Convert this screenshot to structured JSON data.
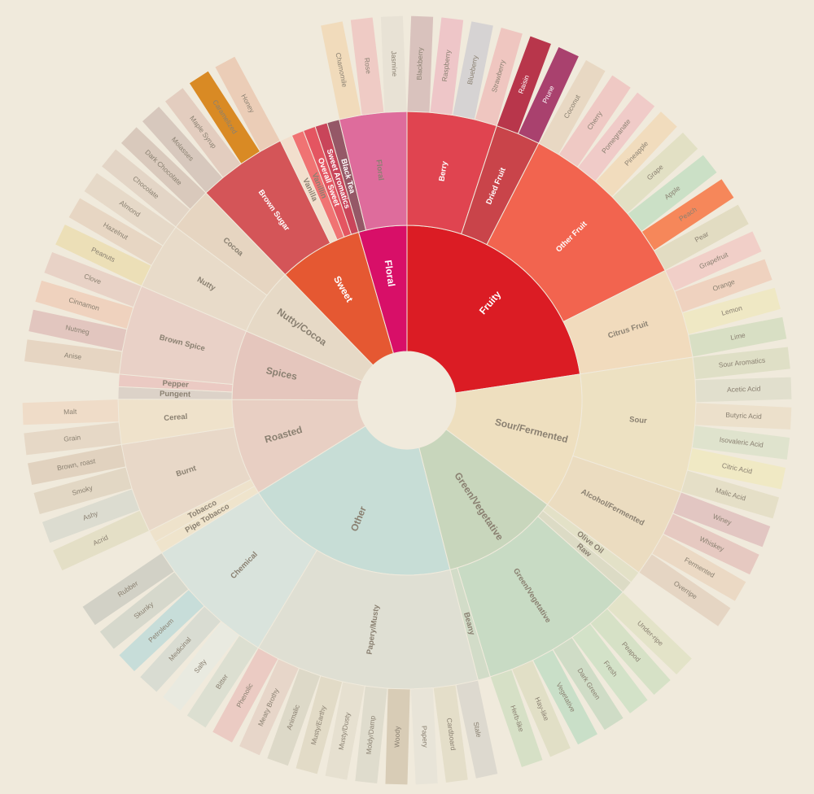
{
  "wheel": {
    "nodes": [
      {
        "label": "Fruity",
        "color": "#db1c24",
        "children": [
          {
            "label": "Berry",
            "color": "#e04450",
            "children": [
              {
                "label": "Blackberry",
                "color": "#d9c2bd"
              },
              {
                "label": "Raspberry",
                "color": "#eec6c8"
              },
              {
                "label": "Blueberry",
                "color": "#d6d3d3"
              },
              {
                "label": "Strawberry",
                "color": "#efc6c0"
              }
            ]
          },
          {
            "label": "Dried Fruit",
            "color": "#c9444a",
            "children": [
              {
                "label": "Raisin",
                "color": "#b8364b"
              },
              {
                "label": "Prune",
                "color": "#a9416e"
              }
            ]
          },
          {
            "label": "Other Fruit",
            "color": "#f2644f",
            "children": [
              {
                "label": "Coconut",
                "color": "#e8d8c3"
              },
              {
                "label": "Cherry",
                "color": "#efc9c4"
              },
              {
                "label": "Pomegranate",
                "color": "#f0cbc8"
              },
              {
                "label": "Pineapple",
                "color": "#f1dcbd"
              },
              {
                "label": "Grape",
                "color": "#e2e0c4"
              },
              {
                "label": "Apple",
                "color": "#cbe0c6"
              },
              {
                "label": "Peach",
                "color": "#f6875a"
              },
              {
                "label": "Pear",
                "color": "#e2dcc2"
              }
            ]
          },
          {
            "label": "Citrus Fruit",
            "color": "#f1dbbd",
            "children": [
              {
                "label": "Grapefruit",
                "color": "#f1cfc8"
              },
              {
                "label": "Orange",
                "color": "#efd2bf"
              },
              {
                "label": "Lemon",
                "color": "#efe8c4"
              },
              {
                "label": "Lime",
                "color": "#d8dfc4"
              }
            ]
          }
        ]
      },
      {
        "label": "Sour/Fermented",
        "color": "#eedfbf",
        "children": [
          {
            "label": "Sour",
            "color": "#ede1c2",
            "children": [
              {
                "label": "Sour Aromatics",
                "color": "#dfdfc6"
              },
              {
                "label": "Acetic Acid",
                "color": "#e1dfcd"
              },
              {
                "label": "Butyric Acid",
                "color": "#ece0cb"
              },
              {
                "label": "Isovaleric Acid",
                "color": "#dfe3cd"
              },
              {
                "label": "Citric Acid",
                "color": "#f0e9c4"
              },
              {
                "label": "Malic Acid",
                "color": "#e5dfc7"
              }
            ]
          },
          {
            "label": "Alcohol/Fermented",
            "color": "#ebdcc0",
            "children": [
              {
                "label": "Winey",
                "color": "#e2c6c2"
              },
              {
                "label": "Whiskey",
                "color": "#e6c9c1"
              },
              {
                "label": "Fermented",
                "color": "#ebd9c4"
              },
              {
                "label": "Overripe",
                "color": "#e5d5c3"
              }
            ]
          }
        ]
      },
      {
        "label": "Green/Vegetative",
        "color": "#c8d6bc",
        "children": [
          {
            "label": "Olive Oil",
            "color": "#e3e1c7"
          },
          {
            "label": "Raw",
            "color": "#dcdbc5"
          },
          {
            "label": "Green/Vegetative",
            "color": "#c8dbc4",
            "children": [
              {
                "label": "Under-ripe",
                "color": "#e3e3c8"
              },
              {
                "label": "Peapod",
                "color": "#d6e1c6"
              },
              {
                "label": "Fresh",
                "color": "#d3e2c8"
              },
              {
                "label": "Dark Green",
                "color": "#cfdcc6"
              },
              {
                "label": "Vegetative",
                "color": "#c9dfc8"
              },
              {
                "label": "Hay-like",
                "color": "#e1dfc6"
              },
              {
                "label": "Herb-like",
                "color": "#d6e0c6"
              }
            ]
          },
          {
            "label": "Beany",
            "color": "#d2dcc8"
          }
        ]
      },
      {
        "label": "Other",
        "color": "#c7ddd6",
        "children": [
          {
            "label": "Papery/Musty",
            "color": "#dfdfd3",
            "children": [
              {
                "label": "Stale",
                "color": "#ddd9cf"
              },
              {
                "label": "Cardboard",
                "color": "#e4dec9"
              },
              {
                "label": "Papery",
                "color": "#e8e4d8"
              },
              {
                "label": "Woody",
                "color": "#d8ccb6"
              },
              {
                "label": "Moldy/Damp",
                "color": "#dfdccd"
              },
              {
                "label": "Musty/Dusty",
                "color": "#e6e0d0"
              },
              {
                "label": "Musty/Earthy",
                "color": "#e2dbc7"
              },
              {
                "label": "Animalic",
                "color": "#ddd9c8"
              },
              {
                "label": "Meaty Brothy",
                "color": "#e7d6c9"
              },
              {
                "label": "Phenolic",
                "color": "#ebcbc3"
              }
            ]
          },
          {
            "label": "Chemical",
            "color": "#d9e3dc",
            "children": [
              {
                "label": "Bitter",
                "color": "#dcdfd1"
              },
              {
                "label": "Salty",
                "color": "#e9eae0"
              },
              {
                "label": "Medicinal",
                "color": "#d9dcd2"
              },
              {
                "label": "Petroleum",
                "color": "#c7ddd9"
              },
              {
                "label": "Skunky",
                "color": "#d6d8cc"
              },
              {
                "label": "Rubber",
                "color": "#d2d1c6"
              }
            ]
          }
        ]
      },
      {
        "label": "Roasted",
        "color": "#e8cfc3",
        "children": [
          {
            "label": "Pipe Tobacco",
            "color": "#efe4cc"
          },
          {
            "label": "Tobacco",
            "color": "#eee2cb"
          },
          {
            "label": "Burnt",
            "color": "#e8d8c8",
            "children": [
              {
                "label": "Acrid",
                "color": "#e4dfc6"
              },
              {
                "label": "Ashy",
                "color": "#dcdcd0"
              },
              {
                "label": "Smoky",
                "color": "#e2d7c4"
              },
              {
                "label": "Brown, roast",
                "color": "#e1d2bf"
              }
            ]
          },
          {
            "label": "Cereal",
            "color": "#efe2cb",
            "children": [
              {
                "label": "Grain",
                "color": "#e6d8c6"
              },
              {
                "label": "Malt",
                "color": "#efdcc8"
              }
            ]
          }
        ]
      },
      {
        "label": "Spices",
        "color": "#e5c6bd",
        "children": [
          {
            "label": "Pungent",
            "color": "#dcd2c8"
          },
          {
            "label": "Pepper",
            "color": "#ebcac3"
          },
          {
            "label": "Brown Spice",
            "color": "#e9d1c7",
            "children": [
              {
                "label": "Anise",
                "color": "#e6d5c2"
              },
              {
                "label": "Nutmeg",
                "color": "#e2c6bf"
              },
              {
                "label": "Cinnamon",
                "color": "#efd2be"
              },
              {
                "label": "Clove",
                "color": "#e8d2c6"
              }
            ]
          }
        ]
      },
      {
        "label": "Nutty/Cocoa",
        "color": "#e6d9c6",
        "children": [
          {
            "label": "Nutty",
            "color": "#e8dbc9",
            "children": [
              {
                "label": "Peanuts",
                "color": "#ecdfb7"
              },
              {
                "label": "Hazelnut",
                "color": "#e7d6c3"
              },
              {
                "label": "Almond",
                "color": "#e6d9c8"
              }
            ]
          },
          {
            "label": "Cocoa",
            "color": "#e6d5c1",
            "children": [
              {
                "label": "Chocolate",
                "color": "#e3d5c6"
              },
              {
                "label": "Dark Chocolate",
                "color": "#d9c9bc"
              }
            ]
          }
        ]
      },
      {
        "label": "Sweet",
        "color": "#e55832",
        "children": [
          {
            "label": "Brown Sugar",
            "color": "#d45558",
            "children": [
              {
                "label": "Molasses",
                "color": "#d7c8bd"
              },
              {
                "label": "Maple Syrup",
                "color": "#e3cdbf"
              },
              {
                "label": "Caramelized",
                "color": "#d98a24"
              },
              {
                "label": "Honey",
                "color": "#ebcdb7"
              }
            ]
          },
          {
            "label": "Vanilla",
            "color": "#f2dfcd"
          },
          {
            "label": "Vanillin",
            "color": "#f07373"
          },
          {
            "label": "Overall Sweet",
            "color": "#e45561"
          },
          {
            "label": "Sweet Aromatics",
            "color": "#c9455a"
          }
        ]
      },
      {
        "label": "Floral",
        "color": "#d80f68",
        "children": [
          {
            "label": "Black Tea",
            "color": "#955867"
          },
          {
            "label": "Floral",
            "color": "#de6c9c",
            "children": [
              {
                "label": "Chamomile",
                "color": "#f1dbbb"
              },
              {
                "label": "Rose",
                "color": "#efcbc5"
              },
              {
                "label": "Jasmine",
                "color": "#e8e2d5"
              }
            ]
          }
        ]
      }
    ]
  }
}
